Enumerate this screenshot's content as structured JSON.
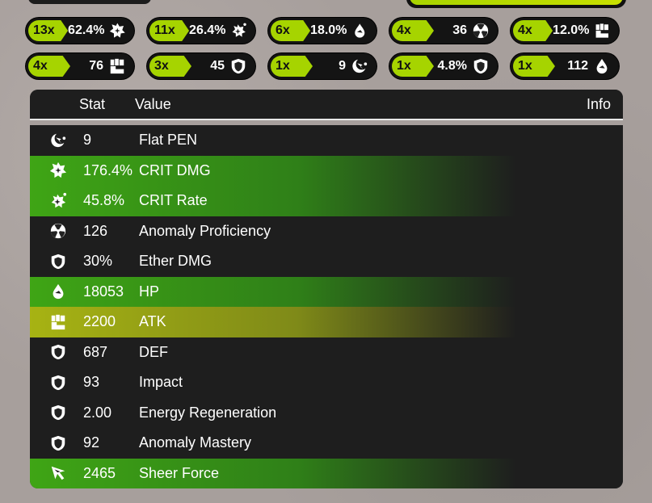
{
  "summary_chips": [
    {
      "count": "13x",
      "value": "62.4%",
      "icon": "crit-dmg-icon"
    },
    {
      "count": "11x",
      "value": "26.4%",
      "icon": "crit-rate-icon"
    },
    {
      "count": "6x",
      "value": "18.0%",
      "icon": "hp-icon"
    },
    {
      "count": "4x",
      "value": "36",
      "icon": "anomaly-icon"
    },
    {
      "count": "4x",
      "value": "12.0%",
      "icon": "atk-icon"
    },
    {
      "count": "4x",
      "value": "76",
      "icon": "atk-icon"
    },
    {
      "count": "3x",
      "value": "45",
      "icon": "shield-icon"
    },
    {
      "count": "1x",
      "value": "9",
      "icon": "pen-icon"
    },
    {
      "count": "1x",
      "value": "4.8%",
      "icon": "shield-icon"
    },
    {
      "count": "1x",
      "value": "112",
      "icon": "hp-icon"
    }
  ],
  "table": {
    "headers": {
      "stat": "Stat",
      "value": "Value",
      "info": "Info"
    },
    "rows": [
      {
        "value": "9",
        "name": "Flat PEN",
        "icon": "pen-icon",
        "highlight": ""
      },
      {
        "value": "176.4%",
        "name": "CRIT DMG",
        "icon": "crit-dmg-icon",
        "highlight": "green"
      },
      {
        "value": "45.8%",
        "name": "CRIT Rate",
        "icon": "crit-rate-icon",
        "highlight": "green"
      },
      {
        "value": "126",
        "name": "Anomaly Proficiency",
        "icon": "anomaly-icon",
        "highlight": ""
      },
      {
        "value": "30%",
        "name": "Ether DMG",
        "icon": "shield-icon",
        "highlight": ""
      },
      {
        "value": "18053",
        "name": "HP",
        "icon": "hp-icon",
        "highlight": "green"
      },
      {
        "value": "2200",
        "name": "ATK",
        "icon": "atk-icon",
        "highlight": "yellow"
      },
      {
        "value": "687",
        "name": "DEF",
        "icon": "shield-icon",
        "highlight": ""
      },
      {
        "value": "93",
        "name": "Impact",
        "icon": "shield-icon",
        "highlight": ""
      },
      {
        "value": "2.00",
        "name": "Energy Regeneration",
        "icon": "shield-icon",
        "highlight": ""
      },
      {
        "value": "92",
        "name": "Anomaly Mastery",
        "icon": "shield-icon",
        "highlight": ""
      },
      {
        "value": "2465",
        "name": "Sheer Force",
        "icon": "sheer-force-icon",
        "highlight": "green"
      }
    ]
  },
  "colors": {
    "accent": "#a6d400",
    "green_highlight": "#3fa515",
    "yellow_highlight": "#a7b313"
  }
}
